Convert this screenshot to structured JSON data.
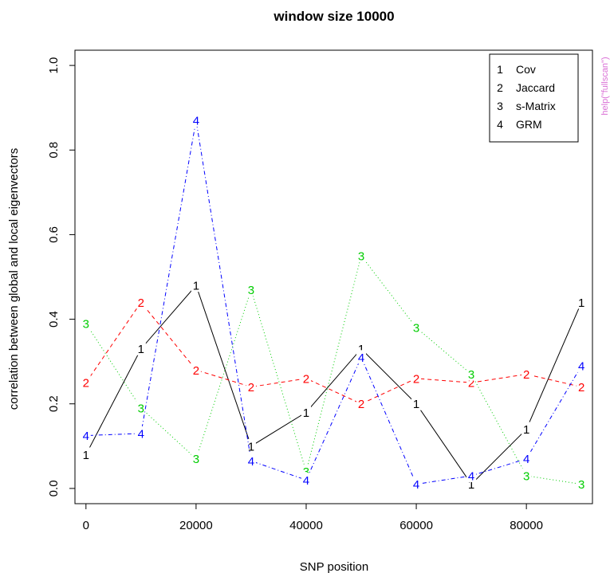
{
  "side_note": "help(\"fullscan\")",
  "colors": {
    "Cov": "#000000",
    "Jaccard": "#ff0000",
    "s-Matrix": "#00cd00",
    "GRM": "#0000ff",
    "side_note": "#da70d6"
  },
  "chart_data": {
    "type": "line",
    "title": "window size 10000",
    "xlabel": "SNP position",
    "ylabel": "correlation between global and local eigenvectors",
    "xlim": [
      -2000,
      92000
    ],
    "ylim": [
      -0.036,
      1.036
    ],
    "x_ticks": [
      0,
      20000,
      40000,
      60000,
      80000
    ],
    "y_ticks": [
      0.0,
      0.2,
      0.4,
      0.6,
      0.8,
      1.0
    ],
    "x_tick_labels": [
      "0",
      "20000",
      "40000",
      "60000",
      "80000"
    ],
    "y_tick_labels": [
      "0.0",
      "0.2",
      "0.4",
      "0.6",
      "0.8",
      "1.0"
    ],
    "legend_position": "top-right",
    "x": [
      0,
      10000,
      20000,
      30000,
      40000,
      50000,
      60000,
      70000,
      80000,
      90000
    ],
    "series": [
      {
        "name": "Cov",
        "marker": "1",
        "line": "solid",
        "values": [
          0.08,
          0.33,
          0.48,
          0.1,
          0.18,
          0.33,
          0.2,
          0.01,
          0.14,
          0.44
        ]
      },
      {
        "name": "Jaccard",
        "marker": "2",
        "line": "dashed",
        "values": [
          0.25,
          0.44,
          0.28,
          0.24,
          0.26,
          0.2,
          0.26,
          0.25,
          0.27,
          0.24
        ]
      },
      {
        "name": "s-Matrix",
        "marker": "3",
        "line": "dotted",
        "values": [
          0.39,
          0.19,
          0.07,
          0.47,
          0.04,
          0.55,
          0.38,
          0.27,
          0.03,
          0.01
        ]
      },
      {
        "name": "GRM",
        "marker": "4",
        "line": "dotdash",
        "values": [
          0.125,
          0.13,
          0.87,
          0.065,
          0.02,
          0.31,
          0.01,
          0.03,
          0.07,
          0.29
        ]
      }
    ]
  }
}
